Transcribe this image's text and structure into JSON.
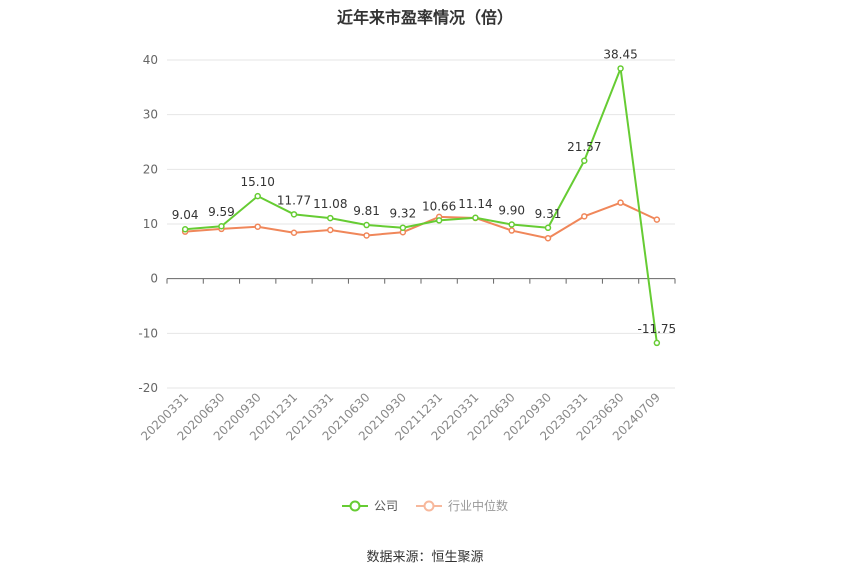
{
  "chart_data": {
    "type": "line",
    "title": "近年来市盈率情况（倍）",
    "categories": [
      "20200331",
      "20200630",
      "20200930",
      "20201231",
      "20210331",
      "20210630",
      "20210930",
      "20211231",
      "20220331",
      "20220630",
      "20220930",
      "20230331",
      "20230630",
      "20240709"
    ],
    "series": [
      {
        "name": "公司",
        "color": "#66cc33",
        "values": [
          9.04,
          9.59,
          15.1,
          11.77,
          11.08,
          9.81,
          9.32,
          10.66,
          11.14,
          9.9,
          9.31,
          21.57,
          38.45,
          -11.75
        ],
        "labels": [
          "9.04",
          "9.59",
          "15.10",
          "11.77",
          "11.08",
          "9.81",
          "9.32",
          "10.66",
          "11.14",
          "9.90",
          "9.31",
          "21.57",
          "38.45",
          "-11.75"
        ]
      },
      {
        "name": "行业中位数",
        "color": "#f0875a",
        "values": [
          8.6,
          9.1,
          9.5,
          8.4,
          8.9,
          7.9,
          8.5,
          11.3,
          11.1,
          8.8,
          7.4,
          11.4,
          13.9,
          10.8
        ]
      }
    ],
    "yticks": [
      40,
      30,
      20,
      10,
      0,
      -10,
      -20
    ],
    "ylim": [
      -20,
      40
    ],
    "grid": true,
    "legend_position": "bottom"
  },
  "source": "数据来源：恒生聚源"
}
